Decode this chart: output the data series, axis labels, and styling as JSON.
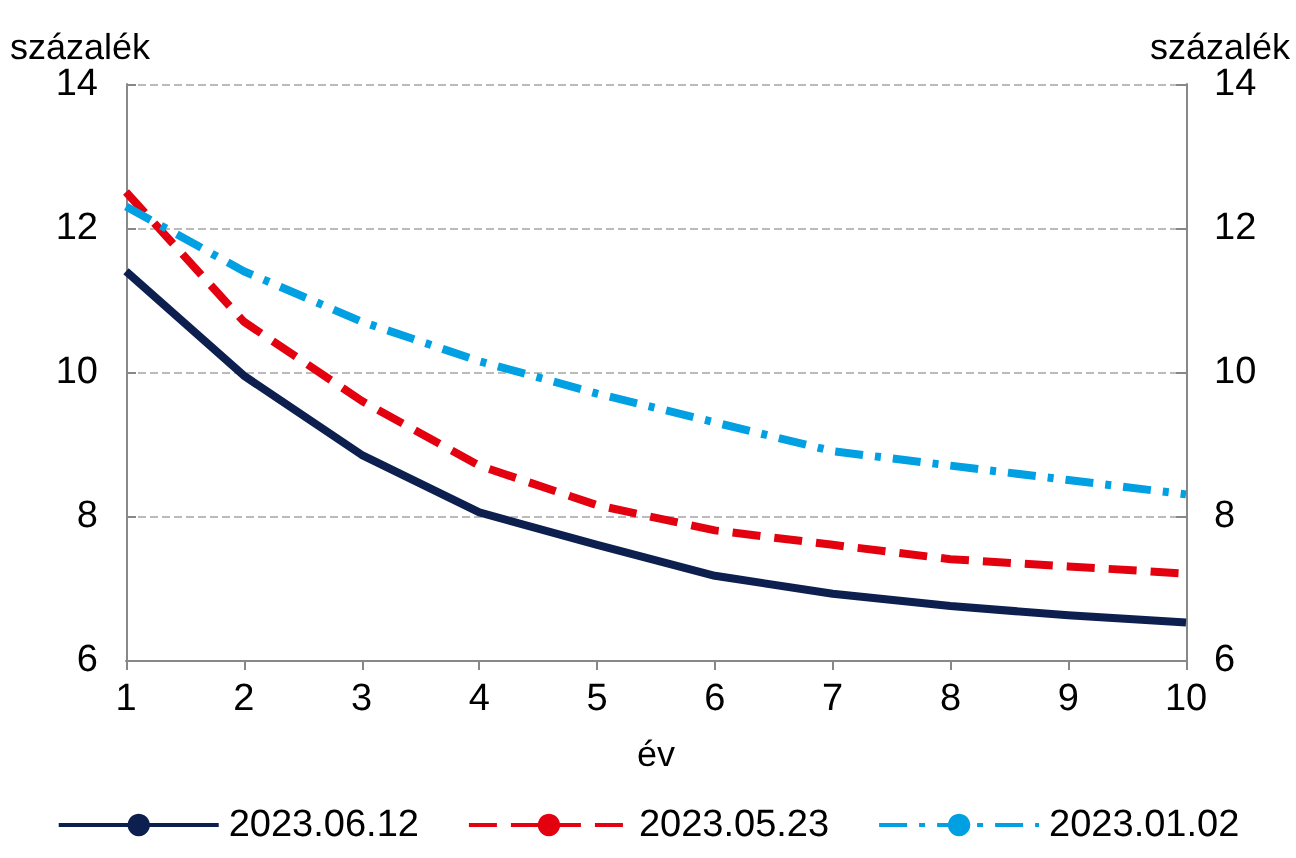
{
  "chart_data": {
    "type": "line",
    "ylabel": "százalék",
    "y2label": "százalék",
    "xlabel": "év",
    "x": [
      1,
      2,
      3,
      4,
      5,
      6,
      7,
      8,
      9,
      10
    ],
    "xlim": [
      1,
      10
    ],
    "xticks": [
      1,
      2,
      3,
      4,
      5,
      6,
      7,
      8,
      9,
      10
    ],
    "ylim": [
      6,
      14
    ],
    "yticks": [
      6,
      8,
      10,
      12,
      14
    ],
    "y2lim": [
      6,
      14
    ],
    "y2ticks": [
      6,
      8,
      10,
      12,
      14
    ],
    "grid": "y",
    "legend": "bottom",
    "marker": "none",
    "series": [
      {
        "name": "2023.06.12",
        "color": "#0d1f4e",
        "line_style": "solid",
        "values": [
          11.4,
          9.95,
          8.85,
          8.05,
          7.6,
          7.17,
          6.92,
          6.75,
          6.62,
          6.52
        ]
      },
      {
        "name": "2023.05.23",
        "color": "#e3000f",
        "line_style": "dashed",
        "values": [
          12.5,
          10.7,
          9.6,
          8.7,
          8.15,
          7.8,
          7.6,
          7.4,
          7.3,
          7.2
        ]
      },
      {
        "name": "2023.01.02",
        "color": "#00a0e3",
        "line_style": "dashdot",
        "values": [
          12.3,
          11.4,
          10.7,
          10.15,
          9.7,
          9.3,
          8.9,
          8.7,
          8.5,
          8.3
        ]
      }
    ]
  }
}
